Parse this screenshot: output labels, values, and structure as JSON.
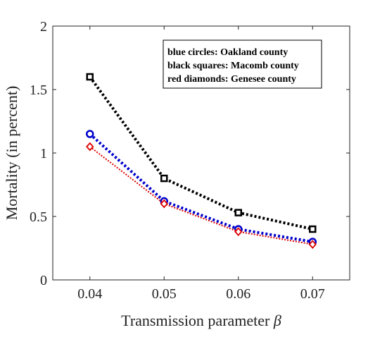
{
  "chart_data": {
    "type": "line",
    "title": "",
    "xlabel_text": "Transmission parameter ",
    "xlabel_symbol": "β",
    "ylabel": "Mortality (in percent)",
    "x": [
      0.04,
      0.05,
      0.06,
      0.07
    ],
    "x_tick_labels": [
      "0.04",
      "0.05",
      "0.06",
      "0.07"
    ],
    "xlim": [
      0.035,
      0.075
    ],
    "ylim": [
      0,
      2
    ],
    "y_ticks": [
      0,
      0.5,
      1,
      1.5,
      2
    ],
    "y_tick_labels": [
      "0",
      "0.5",
      "1",
      "1.5",
      "2"
    ],
    "grid": false,
    "legend_placement": "top-right",
    "legend_entries": [
      "blue circles: Oakland county",
      "black squares: Macomb county",
      "red diamonds: Genesee county"
    ],
    "series": [
      {
        "key": "oakland",
        "marker": "circle",
        "color": "#0000cc",
        "values": [
          1.15,
          0.62,
          0.4,
          0.3
        ]
      },
      {
        "key": "macomb",
        "marker": "square",
        "color": "#000000",
        "values": [
          1.6,
          0.8,
          0.53,
          0.4
        ]
      },
      {
        "key": "genesee",
        "marker": "diamond",
        "color": "#dd0000",
        "values": [
          1.05,
          0.6,
          0.38,
          0.28
        ]
      }
    ]
  }
}
